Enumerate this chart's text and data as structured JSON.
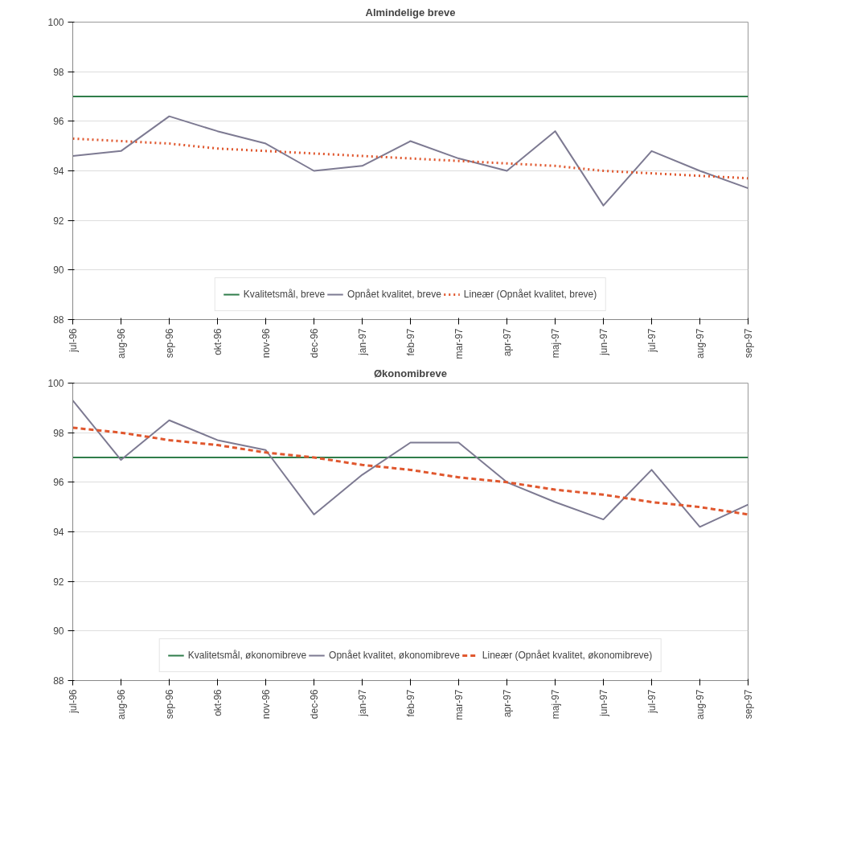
{
  "chart_data": [
    {
      "type": "line",
      "title": "Almindelige breve",
      "categories": [
        "jul-96",
        "aug-96",
        "sep-96",
        "okt-96",
        "nov-96",
        "dec-96",
        "jan-97",
        "feb-97",
        "mar-97",
        "apr-97",
        "maj-97",
        "jun-97",
        "jul-97",
        "aug-97",
        "sep-97"
      ],
      "series": [
        {
          "name": "Kvalitetsmål, breve",
          "color": "#2f7d4a",
          "line_style": "solid",
          "values": [
            97,
            97,
            97,
            97,
            97,
            97,
            97,
            97,
            97,
            97,
            97,
            97,
            97,
            97,
            97
          ]
        },
        {
          "name": "Opnået kvalitet, breve",
          "color": "#7d7a92",
          "line_style": "solid",
          "values": [
            94.6,
            94.8,
            96.2,
            95.6,
            95.1,
            94.0,
            94.2,
            95.2,
            94.5,
            94.0,
            95.6,
            92.6,
            94.8,
            94.0,
            93.3
          ]
        },
        {
          "name": "Lineær (Opnået kvalitet, breve)",
          "color": "#e0572e",
          "line_style": "dotted",
          "values": [
            95.3,
            95.2,
            95.1,
            94.9,
            94.8,
            94.7,
            94.6,
            94.5,
            94.4,
            94.3,
            94.2,
            94.0,
            93.9,
            93.8,
            93.7
          ]
        }
      ],
      "ylim": [
        88,
        100
      ],
      "yticks": [
        88,
        90,
        92,
        94,
        96,
        98,
        100
      ],
      "grid": "y",
      "legend": "bottom"
    },
    {
      "type": "line",
      "title": "Økonomibreve",
      "categories": [
        "jul-96",
        "aug-96",
        "sep-96",
        "okt-96",
        "nov-96",
        "dec-96",
        "jan-97",
        "feb-97",
        "mar-97",
        "apr-97",
        "maj-97",
        "jun-97",
        "jul-97",
        "aug-97",
        "sep-97"
      ],
      "series": [
        {
          "name": "Kvalitetsmål, økonomibreve",
          "color": "#2f7d4a",
          "line_style": "solid",
          "values": [
            97,
            97,
            97,
            97,
            97,
            97,
            97,
            97,
            97,
            97,
            97,
            97,
            97,
            97,
            97
          ]
        },
        {
          "name": "Opnået kvalitet, økonomibreve",
          "color": "#7d7a92",
          "line_style": "solid",
          "values": [
            99.3,
            96.9,
            98.5,
            97.7,
            97.3,
            94.7,
            96.3,
            97.6,
            97.6,
            96.0,
            95.2,
            94.5,
            96.5,
            94.2,
            95.1
          ]
        },
        {
          "name": "Lineær (Opnået kvalitet, økonomibreve)",
          "color": "#e0572e",
          "line_style": "dashed",
          "values": [
            98.2,
            98.0,
            97.7,
            97.5,
            97.2,
            97.0,
            96.7,
            96.5,
            96.2,
            96.0,
            95.7,
            95.5,
            95.2,
            95.0,
            94.7
          ]
        }
      ],
      "ylim": [
        88,
        100
      ],
      "yticks": [
        88,
        90,
        92,
        94,
        96,
        98,
        100
      ],
      "grid": "y",
      "legend": "bottom"
    }
  ]
}
